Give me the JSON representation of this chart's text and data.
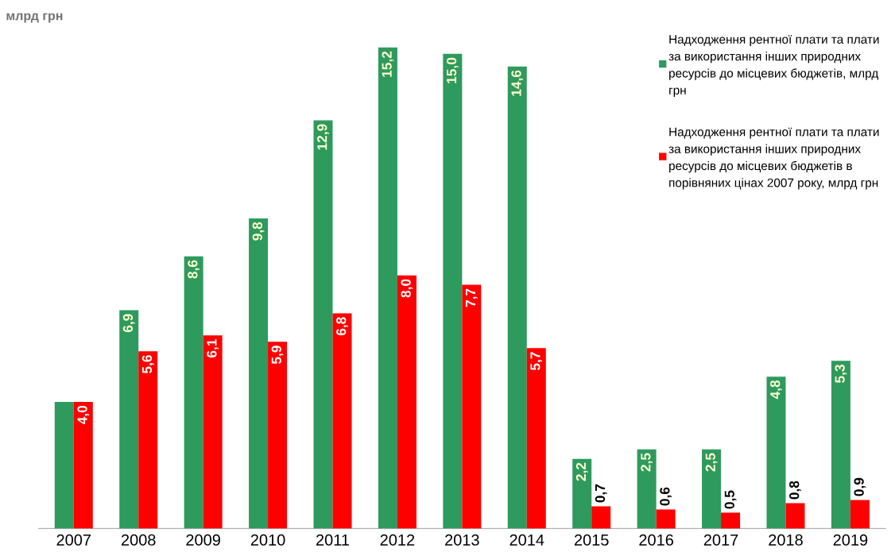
{
  "chart_data": {
    "type": "bar",
    "ylabel": "млрд грн",
    "categories": [
      "2007",
      "2008",
      "2009",
      "2010",
      "2011",
      "2012",
      "2013",
      "2014",
      "2015",
      "2016",
      "2017",
      "2018",
      "2019"
    ],
    "series": [
      {
        "name": "Надходження рентної плати та плати за використання інших природних ресурсів до місцевих бюджетів, млрд грн",
        "color": "#2e9a5e",
        "values": [
          4.0,
          6.9,
          8.6,
          9.8,
          12.9,
          15.2,
          15.0,
          14.6,
          2.2,
          2.5,
          2.5,
          4.8,
          5.3
        ],
        "value_labels": [
          null,
          "6,9",
          "8,6",
          "9,8",
          "12,9",
          "15,2",
          "15,0",
          "14,6",
          "2,2",
          "2,5",
          "2,5",
          "4,8",
          "5,3"
        ]
      },
      {
        "name": "Надходження рентної плати та плати за використання інших природних ресурсів до місцевих бюджетів в порівняних цінах 2007 року, млрд грн",
        "color": "#ff0000",
        "values": [
          4.0,
          5.6,
          6.1,
          5.9,
          6.8,
          8.0,
          7.7,
          5.7,
          0.7,
          0.6,
          0.5,
          0.8,
          0.9
        ],
        "value_labels": [
          "4,0",
          "5,6",
          "6,1",
          "5,9",
          "6,8",
          "8,0",
          "7,7",
          "5,7",
          "0,7",
          "0,6",
          "0,5",
          "0,8",
          "0,9"
        ]
      }
    ],
    "legend": "top right"
  }
}
